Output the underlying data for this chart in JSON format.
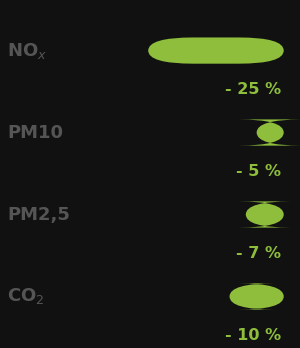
{
  "categories": [
    "NO$_x$",
    "PM10",
    "PM2,5",
    "CO$_2$"
  ],
  "labels_plain": [
    "NOx",
    "PM10",
    "PM2,5",
    "CO2"
  ],
  "values": [
    25,
    5,
    7,
    10
  ],
  "percentage_labels": [
    "- 25 %",
    "- 5 %",
    "- 7 %",
    "- 10 %"
  ],
  "bar_color": "#8fbe3c",
  "bg_color": "#111111",
  "label_color": "#555555",
  "value_color": "#8fbe3c",
  "max_val": 25,
  "bar_height": 0.32,
  "fig_width": 3.0,
  "fig_height": 3.48,
  "dpi": 100
}
